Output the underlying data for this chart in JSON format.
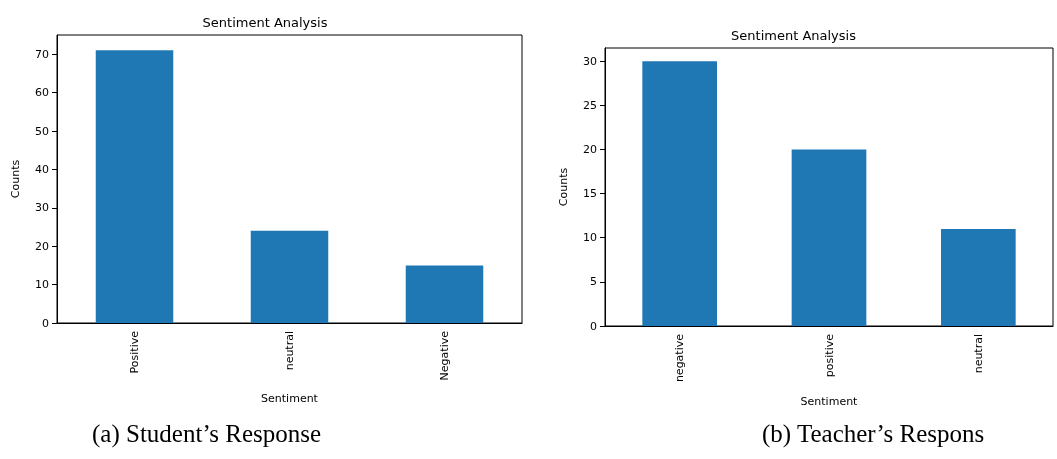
{
  "chart_data": [
    {
      "type": "bar",
      "title": "Sentiment Analysis",
      "xlabel": "Sentiment",
      "ylabel": "Counts",
      "categories": [
        "Positive",
        "neutral",
        "Negative"
      ],
      "values": [
        71,
        24,
        15
      ],
      "color": "#1f77b4",
      "ylim": [
        0,
        75
      ],
      "yticks": [
        0,
        10,
        20,
        30,
        40,
        50,
        60,
        70
      ],
      "grid": false,
      "annotations": [
        "(a)  Student’s  Response"
      ]
    },
    {
      "type": "bar",
      "title": "Sentiment Analysis",
      "xlabel": "Sentiment",
      "ylabel": "Counts",
      "categories": [
        "negative",
        "positive",
        "neutral"
      ],
      "values": [
        30,
        20,
        11
      ],
      "color": "#1f77b4",
      "ylim": [
        0,
        31.5
      ],
      "yticks": [
        0,
        5,
        10,
        15,
        20,
        25,
        30
      ],
      "grid": false,
      "annotations": [
        "(b)  Teacher’s Respons"
      ]
    }
  ]
}
